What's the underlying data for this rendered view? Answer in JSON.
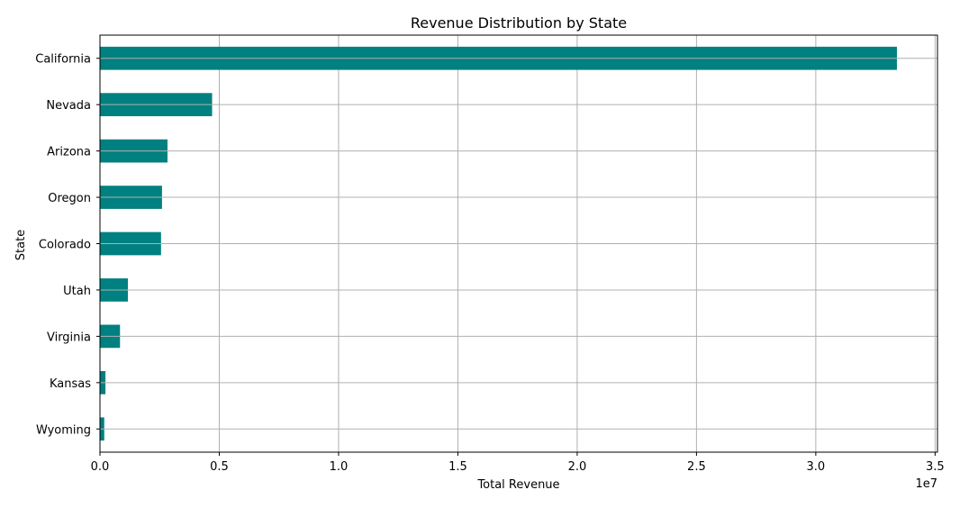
{
  "chart_data": {
    "type": "bar",
    "orientation": "horizontal",
    "title": "Revenue Distribution by State",
    "xlabel": "Total Revenue",
    "ylabel": "State",
    "x_offset_label": "1e7",
    "categories": [
      "California",
      "Nevada",
      "Arizona",
      "Oregon",
      "Colorado",
      "Utah",
      "Virginia",
      "Kansas",
      "Wyoming"
    ],
    "values": [
      33400000,
      4700000,
      2830000,
      2600000,
      2560000,
      1170000,
      840000,
      230000,
      180000
    ],
    "xlim": [
      0,
      35100000
    ],
    "xticks": [
      0,
      5000000,
      10000000,
      15000000,
      20000000,
      25000000,
      30000000,
      35000000
    ],
    "xtick_labels": [
      "0.0",
      "0.5",
      "1.0",
      "1.5",
      "2.0",
      "2.5",
      "3.0",
      "3.5"
    ],
    "grid": true,
    "bar_color": "#008080"
  }
}
